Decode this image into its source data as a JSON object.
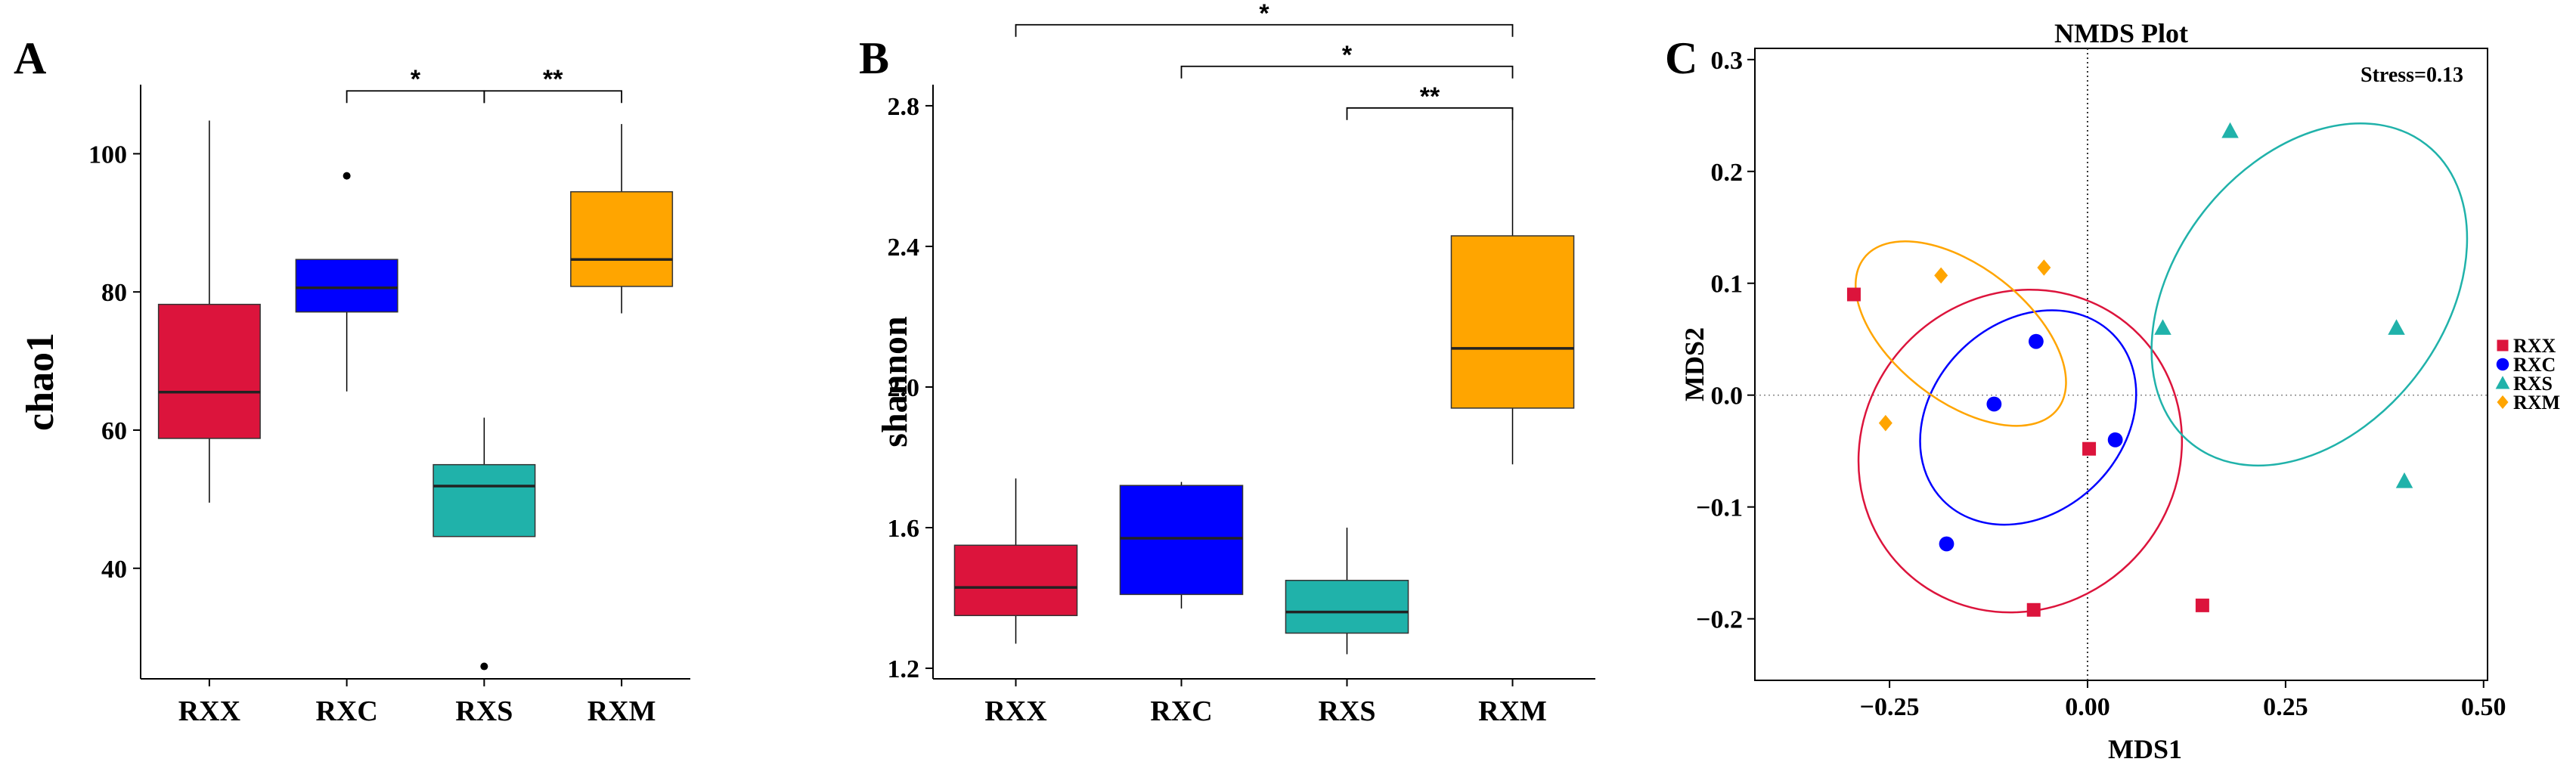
{
  "chart_data": [
    {
      "panel": "A",
      "type": "box",
      "ylabel": "chao1",
      "xlabel": "",
      "categories": [
        "RXX",
        "RXC",
        "RXS",
        "RXM"
      ],
      "ylim": [
        24,
        110
      ],
      "yticks": [
        40,
        60,
        80,
        100
      ],
      "colors": [
        "#DC143C",
        "#0000FF",
        "#20B2AA",
        "#FFA500"
      ],
      "boxes": [
        {
          "group": "RXX",
          "lower_whisker": 49.5,
          "q1": 58.8,
          "median": 65.5,
          "q3": 78.2,
          "upper_whisker": 104.8,
          "outliers": []
        },
        {
          "group": "RXC",
          "lower_whisker": 65.6,
          "q1": 77.1,
          "median": 80.6,
          "q3": 84.7,
          "upper_whisker": 84.7,
          "outliers": [
            96.8
          ]
        },
        {
          "group": "RXS",
          "lower_whisker": 44.6,
          "q1": 44.6,
          "median": 51.9,
          "q3": 55.0,
          "upper_whisker": 61.8,
          "outliers": [
            25.8
          ]
        },
        {
          "group": "RXM",
          "lower_whisker": 76.9,
          "q1": 80.8,
          "median": 84.7,
          "q3": 94.5,
          "upper_whisker": 104.3,
          "outliers": []
        }
      ],
      "significance": [
        {
          "from": "RXC",
          "to": "RXS",
          "label": "*"
        },
        {
          "from": "RXS",
          "to": "RXM",
          "label": "**"
        }
      ]
    },
    {
      "panel": "B",
      "type": "box",
      "ylabel": "shannon",
      "xlabel": "",
      "categories": [
        "RXX",
        "RXC",
        "RXS",
        "RXM"
      ],
      "ylim": [
        1.17,
        2.86
      ],
      "yticks": [
        1.2,
        1.6,
        2.0,
        2.4,
        2.8
      ],
      "ytick_labels": [
        "1.2",
        "1.6",
        "2.0",
        "2.4",
        "2.8"
      ],
      "colors": [
        "#DC143C",
        "#0000FF",
        "#20B2AA",
        "#FFA500"
      ],
      "boxes": [
        {
          "group": "RXX",
          "lower_whisker": 1.27,
          "q1": 1.35,
          "median": 1.43,
          "q3": 1.55,
          "upper_whisker": 1.74,
          "outliers": []
        },
        {
          "group": "RXC",
          "lower_whisker": 1.37,
          "q1": 1.41,
          "median": 1.57,
          "q3": 1.72,
          "upper_whisker": 1.73,
          "outliers": []
        },
        {
          "group": "RXS",
          "lower_whisker": 1.24,
          "q1": 1.3,
          "median": 1.36,
          "q3": 1.45,
          "upper_whisker": 1.6,
          "outliers": []
        },
        {
          "group": "RXM",
          "lower_whisker": 1.78,
          "q1": 1.94,
          "median": 2.11,
          "q3": 2.43,
          "upper_whisker": 2.76,
          "outliers": []
        }
      ],
      "significance": [
        {
          "from": "RXS",
          "to": "RXM",
          "label": "**"
        },
        {
          "from": "RXC",
          "to": "RXM",
          "label": "*"
        },
        {
          "from": "RXX",
          "to": "RXM",
          "label": "*"
        }
      ]
    },
    {
      "panel": "C",
      "type": "scatter",
      "title": "NMDS Plot",
      "xlabel": "MDS1",
      "ylabel": "MDS2",
      "annotation": "Stress=0.13",
      "xlim": [
        -0.42,
        0.505
      ],
      "ylim": [
        -0.255,
        0.31
      ],
      "xticks": [
        -0.25,
        0.0,
        0.25,
        0.5
      ],
      "xtick_labels": [
        "−0.25",
        "0.00",
        "0.25",
        "0.50"
      ],
      "yticks": [
        -0.2,
        -0.1,
        0.0,
        0.1,
        0.2,
        0.3
      ],
      "ytick_labels": [
        "−0.2",
        "−0.1",
        "0.0",
        "0.1",
        "0.2",
        "0.3"
      ],
      "legend_position": "right",
      "series": [
        {
          "name": "RXX",
          "color": "#DC143C",
          "marker": "square",
          "points": [
            [
              -0.295,
              0.09
            ],
            [
              0.002,
              -0.048
            ],
            [
              -0.068,
              -0.192
            ],
            [
              0.145,
              -0.188
            ]
          ],
          "ellipse": {
            "cx": -0.085,
            "cy": -0.05,
            "rx": 0.21,
            "ry": 0.14,
            "angle_deg": -44
          }
        },
        {
          "name": "RXC",
          "color": "#0000FF",
          "marker": "circle",
          "points": [
            [
              -0.065,
              0.048
            ],
            [
              -0.118,
              -0.008
            ],
            [
              0.035,
              -0.04
            ],
            [
              -0.178,
              -0.133
            ]
          ],
          "ellipse": {
            "cx": -0.075,
            "cy": -0.02,
            "rx": 0.15,
            "ry": 0.085,
            "angle_deg": -44
          }
        },
        {
          "name": "RXS",
          "color": "#20B2AA",
          "marker": "triangle",
          "points": [
            [
              0.18,
              0.236
            ],
            [
              0.095,
              0.06
            ],
            [
              0.39,
              0.06
            ],
            [
              0.4,
              -0.077
            ]
          ],
          "ellipse": {
            "cx": 0.28,
            "cy": 0.09,
            "rx": 0.24,
            "ry": 0.12,
            "angle_deg": -52
          }
        },
        {
          "name": "RXM",
          "color": "#FFA500",
          "marker": "diamond",
          "points": [
            [
              -0.185,
              0.107
            ],
            [
              -0.055,
              0.114
            ],
            [
              -0.255,
              -0.025
            ]
          ],
          "ellipse": {
            "cx": -0.16,
            "cy": 0.055,
            "rx": 0.155,
            "ry": 0.06,
            "angle_deg": 38
          }
        }
      ]
    }
  ],
  "panel_labels": [
    "A",
    "B",
    "C"
  ]
}
